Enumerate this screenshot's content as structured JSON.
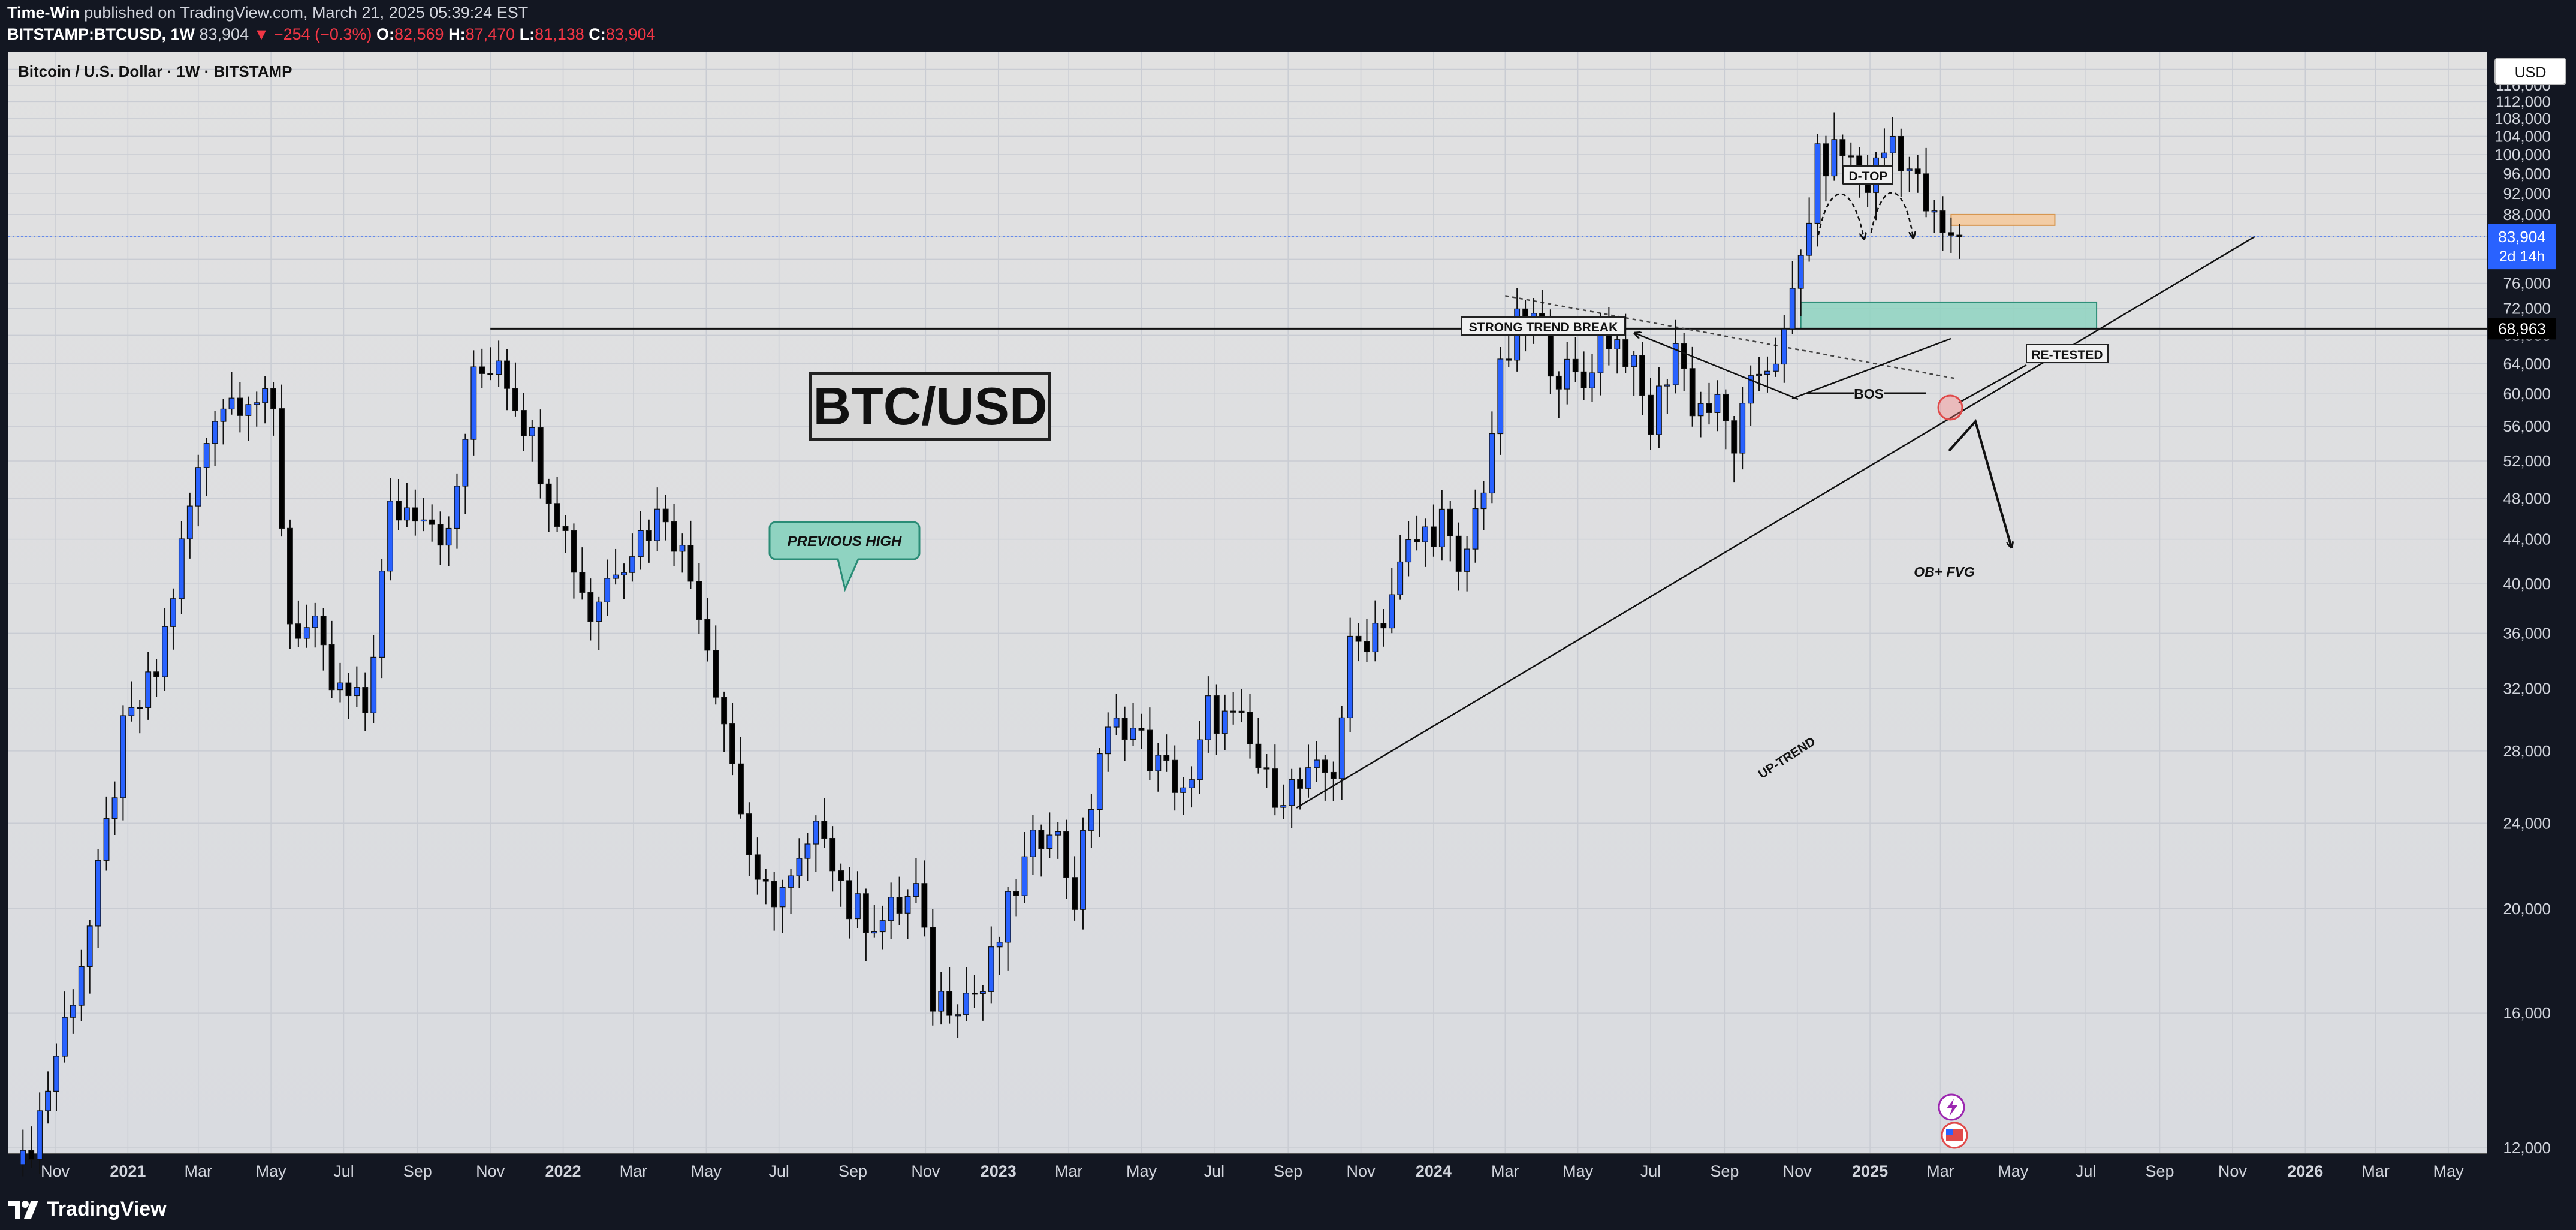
{
  "header": {
    "author": "Time-Win",
    "published": "published on TradingView.com, March 21, 2025 05:39:24 EST",
    "symbol_line": {
      "symbol": "BITSTAMP:BTCUSD, 1W",
      "last": "83,904",
      "change": "▼ −254 (−0.3%)",
      "open_label": "O:",
      "open": "82,569",
      "high_label": "H:",
      "high": "87,470",
      "low_label": "L:",
      "low": "81,138",
      "close_label": "C:",
      "close": "83,904"
    }
  },
  "chart": {
    "symbol_label": "Bitcoin / U.S. Dollar · 1W · BITSTAMP",
    "currency_button": "USD",
    "title": "BTC/USD",
    "price_tag": {
      "value": "83,904",
      "countdown": "2d 14h"
    },
    "level_tag": "68,963"
  },
  "annotations": {
    "previous_high": "PREVIOUS HIGH",
    "strong_trend_break": "STRONG TREND BREAK",
    "d_top": "D-TOP",
    "re_tested": "RE-TESTED",
    "bos": "BOS",
    "ob_fvg": "OB+ FVG",
    "up_trend": "UP-TREND"
  },
  "footer": {
    "brand": "TradingView"
  },
  "colors": {
    "bull": "#2962ff",
    "bear": "#000000",
    "zone_green": "#8fd3c1",
    "zone_orange": "#f5c89a",
    "price_tag": "#2962ff",
    "background": "#131722"
  },
  "chart_data": {
    "type": "candlestick",
    "timeframe": "1W",
    "x_range": [
      "2020-09-28",
      "2026-06-30"
    ],
    "y_scale": "log",
    "y_ticks": [
      12000,
      16000,
      20000,
      24000,
      28000,
      32000,
      36000,
      40000,
      44000,
      48000,
      52000,
      56000,
      60000,
      64000,
      68000,
      72000,
      76000,
      80000,
      84000,
      88000,
      92000,
      96000,
      100000,
      104000,
      108000,
      112000,
      116000,
      120000
    ],
    "y_tick_labels": [
      "12,000",
      "16,000",
      "20,000",
      "24,000",
      "28,000",
      "32,000",
      "36,000",
      "40,000",
      "44,000",
      "48,000",
      "52,000",
      "56,000",
      "60,000",
      "64,000",
      "68,000",
      "72,000",
      "76,000",
      "80,000",
      "84,000",
      "88,000",
      "92,000",
      "96,000",
      "100,000",
      "104,000",
      "108,000",
      "112,000",
      "116,000",
      "120,000"
    ],
    "x_ticks": [
      {
        "date": "2020-11-01",
        "label": "Nov",
        "bold": false
      },
      {
        "date": "2021-01-01",
        "label": "2021",
        "bold": true
      },
      {
        "date": "2021-03-01",
        "label": "Mar",
        "bold": false
      },
      {
        "date": "2021-05-01",
        "label": "May",
        "bold": false
      },
      {
        "date": "2021-07-01",
        "label": "Jul",
        "bold": false
      },
      {
        "date": "2021-09-01",
        "label": "Sep",
        "bold": false
      },
      {
        "date": "2021-11-01",
        "label": "Nov",
        "bold": false
      },
      {
        "date": "2022-01-01",
        "label": "2022",
        "bold": true
      },
      {
        "date": "2022-03-01",
        "label": "Mar",
        "bold": false
      },
      {
        "date": "2022-05-01",
        "label": "May",
        "bold": false
      },
      {
        "date": "2022-07-01",
        "label": "Jul",
        "bold": false
      },
      {
        "date": "2022-09-01",
        "label": "Sep",
        "bold": false
      },
      {
        "date": "2022-11-01",
        "label": "Nov",
        "bold": false
      },
      {
        "date": "2023-01-01",
        "label": "2023",
        "bold": true
      },
      {
        "date": "2023-03-01",
        "label": "Mar",
        "bold": false
      },
      {
        "date": "2023-05-01",
        "label": "May",
        "bold": false
      },
      {
        "date": "2023-07-01",
        "label": "Jul",
        "bold": false
      },
      {
        "date": "2023-09-01",
        "label": "Sep",
        "bold": false
      },
      {
        "date": "2023-11-01",
        "label": "Nov",
        "bold": false
      },
      {
        "date": "2024-01-01",
        "label": "2024",
        "bold": true
      },
      {
        "date": "2024-03-01",
        "label": "Mar",
        "bold": false
      },
      {
        "date": "2024-05-01",
        "label": "May",
        "bold": false
      },
      {
        "date": "2024-07-01",
        "label": "Jul",
        "bold": false
      },
      {
        "date": "2024-09-01",
        "label": "Sep",
        "bold": false
      },
      {
        "date": "2024-11-01",
        "label": "Nov",
        "bold": false
      },
      {
        "date": "2025-01-01",
        "label": "2025",
        "bold": true
      },
      {
        "date": "2025-03-01",
        "label": "Mar",
        "bold": false
      },
      {
        "date": "2025-05-01",
        "label": "May",
        "bold": false
      },
      {
        "date": "2025-07-01",
        "label": "Jul",
        "bold": false
      },
      {
        "date": "2025-09-01",
        "label": "Sep",
        "bold": false
      },
      {
        "date": "2025-11-01",
        "label": "Nov",
        "bold": false
      },
      {
        "date": "2026-01-01",
        "label": "2026",
        "bold": true
      },
      {
        "date": "2026-03-01",
        "label": "Mar",
        "bold": false
      },
      {
        "date": "2026-05-01",
        "label": "May",
        "bold": false
      }
    ],
    "closes_path": [
      [
        "2020-10-05",
        11500
      ],
      [
        "2020-10-26",
        13700
      ],
      [
        "2020-11-30",
        19200
      ],
      [
        "2020-12-28",
        28900
      ],
      [
        "2021-01-25",
        33000
      ],
      [
        "2021-02-22",
        47000
      ],
      [
        "2021-03-15",
        58500
      ],
      [
        "2021-04-12",
        60500
      ],
      [
        "2021-05-03",
        57000
      ],
      [
        "2021-05-17",
        37000
      ],
      [
        "2021-06-07",
        35800
      ],
      [
        "2021-06-21",
        32000
      ],
      [
        "2021-07-19",
        30500
      ],
      [
        "2021-08-09",
        46500
      ],
      [
        "2021-09-06",
        47500
      ],
      [
        "2021-09-27",
        43800
      ],
      [
        "2021-10-18",
        61500
      ],
      [
        "2021-11-08",
        65500
      ],
      [
        "2021-11-29",
        57000
      ],
      [
        "2021-12-27",
        47000
      ],
      [
        "2022-01-24",
        37500
      ],
      [
        "2022-02-14",
        42000
      ],
      [
        "2022-03-28",
        47000
      ],
      [
        "2022-04-25",
        38500
      ],
      [
        "2022-05-16",
        30000
      ],
      [
        "2022-06-13",
        20500
      ],
      [
        "2022-07-11",
        21000
      ],
      [
        "2022-08-08",
        24000
      ],
      [
        "2022-08-29",
        20000
      ],
      [
        "2022-09-26",
        19500
      ],
      [
        "2022-10-24",
        20700
      ],
      [
        "2022-11-07",
        16500
      ],
      [
        "2022-12-19",
        16800
      ],
      [
        "2023-01-16",
        21000
      ],
      [
        "2023-02-13",
        24500
      ],
      [
        "2023-03-06",
        20500
      ],
      [
        "2023-03-27",
        28000
      ],
      [
        "2023-04-17",
        30000
      ],
      [
        "2023-05-15",
        27000
      ],
      [
        "2023-06-12",
        25700
      ],
      [
        "2023-06-26",
        30500
      ],
      [
        "2023-07-24",
        29300
      ],
      [
        "2023-08-14",
        26000
      ],
      [
        "2023-09-11",
        25800
      ],
      [
        "2023-10-09",
        27000
      ],
      [
        "2023-10-23",
        34500
      ],
      [
        "2023-11-20",
        37500
      ],
      [
        "2023-12-11",
        43000
      ],
      [
        "2024-01-08",
        46000
      ],
      [
        "2024-01-22",
        40000
      ],
      [
        "2024-02-12",
        50000
      ],
      [
        "2024-02-26",
        62000
      ],
      [
        "2024-03-11",
        69000
      ],
      [
        "2024-03-25",
        70000
      ],
      [
        "2024-04-15",
        63000
      ],
      [
        "2024-05-06",
        61000
      ],
      [
        "2024-05-20",
        69000
      ],
      [
        "2024-06-10",
        66000
      ],
      [
        "2024-07-01",
        56000
      ],
      [
        "2024-07-22",
        67000
      ],
      [
        "2024-08-05",
        59000
      ],
      [
        "2024-08-26",
        58000
      ],
      [
        "2024-09-09",
        54000
      ],
      [
        "2024-09-30",
        63000
      ],
      [
        "2024-10-21",
        67000
      ],
      [
        "2024-11-04",
        80000
      ],
      [
        "2024-11-18",
        98000
      ],
      [
        "2024-12-09",
        101000
      ],
      [
        "2024-12-30",
        94000
      ],
      [
        "2025-01-20",
        104000
      ],
      [
        "2025-02-03",
        97000
      ],
      [
        "2025-02-24",
        86000
      ],
      [
        "2025-03-10",
        82500
      ],
      [
        "2025-03-17",
        83904
      ]
    ],
    "last_price": 83904,
    "previous_high_level": 68963,
    "zones": [
      {
        "name": "OB+ FVG",
        "from": "2024-11-04",
        "to": "2025-07-10",
        "low": 68963,
        "high": 73000
      },
      {
        "name": "retest zone",
        "from": "2025-03-10",
        "to": "2025-06-05",
        "low": 86000,
        "high": 88000
      }
    ],
    "trendlines": [
      {
        "name": "UP-TREND",
        "from": [
          "2023-09-08",
          24800
        ],
        "to": [
          "2025-11-20",
          84000
        ]
      },
      {
        "name": "descending resistance",
        "from": [
          "2024-03-01",
          74000
        ],
        "to": [
          "2025-03-14",
          62000
        ]
      },
      {
        "name": "previous high",
        "from": [
          "2021-11-01",
          68963
        ],
        "to": [
          "2026-07-01",
          68963
        ]
      }
    ]
  }
}
